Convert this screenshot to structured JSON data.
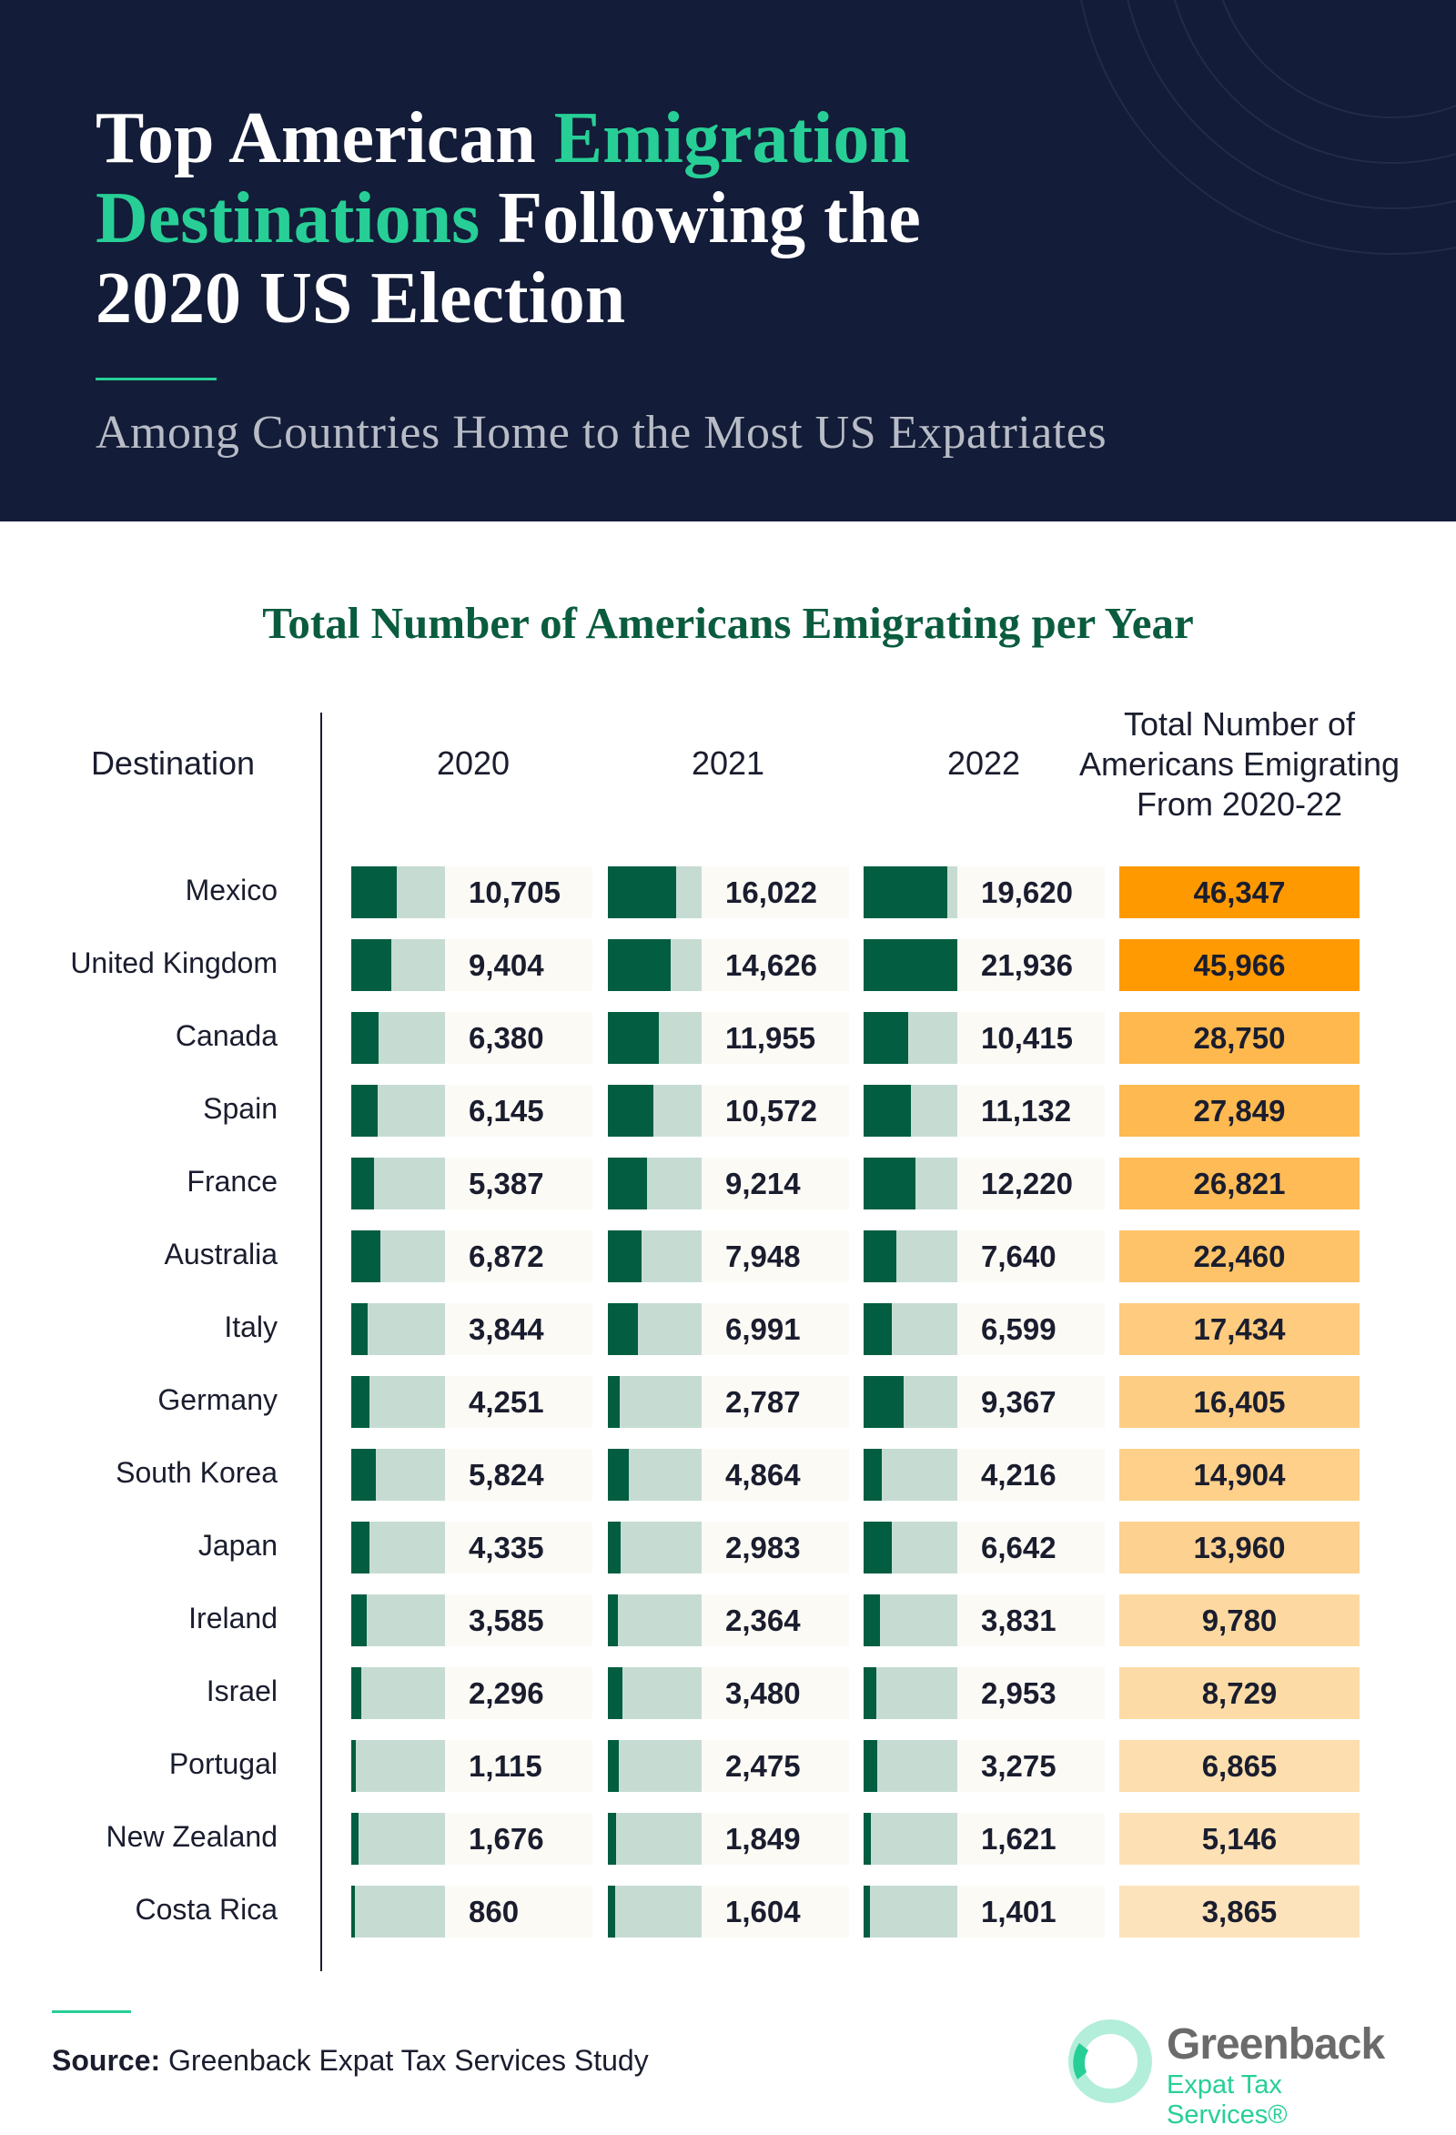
{
  "header": {
    "title_parts": [
      "Top American ",
      "Emigration",
      "Destinations",
      " Following the",
      "2020 US Election"
    ],
    "subtitle": "Among Countries Home to the Most US Expatriates"
  },
  "colors": {
    "header_bg": "#131c38",
    "accent": "#27cf96",
    "bar_dark": "#025d41",
    "bar_light": "#c6dcd3",
    "total_max": "#ff9900",
    "total_min": "#fde3bb"
  },
  "chart_data": {
    "type": "table",
    "title": "Total Number of Americans Emigrating per Year",
    "columns": [
      "Destination",
      "2020",
      "2021",
      "2022",
      "Total Number of Americans Emigrating From 2020-22"
    ],
    "rows": [
      {
        "country": "Mexico",
        "v2020": "10,705",
        "v2021": "16,022",
        "v2022": "19,620",
        "total": "46,347"
      },
      {
        "country": "United Kingdom",
        "v2020": "9,404",
        "v2021": "14,626",
        "v2022": "21,936",
        "total": "45,966"
      },
      {
        "country": "Canada",
        "v2020": "6,380",
        "v2021": "11,955",
        "v2022": "10,415",
        "total": "28,750"
      },
      {
        "country": "Spain",
        "v2020": "6,145",
        "v2021": "10,572",
        "v2022": "11,132",
        "total": "27,849"
      },
      {
        "country": "France",
        "v2020": "5,387",
        "v2021": "9,214",
        "v2022": "12,220",
        "total": "26,821"
      },
      {
        "country": "Australia",
        "v2020": "6,872",
        "v2021": "7,948",
        "v2022": "7,640",
        "total": "22,460"
      },
      {
        "country": "Italy",
        "v2020": "3,844",
        "v2021": "6,991",
        "v2022": "6,599",
        "total": "17,434"
      },
      {
        "country": "Germany",
        "v2020": "4,251",
        "v2021": "2,787",
        "v2022": "9,367",
        "total": "16,405"
      },
      {
        "country": "South Korea",
        "v2020": "5,824",
        "v2021": "4,864",
        "v2022": "4,216",
        "total": "14,904"
      },
      {
        "country": "Japan",
        "v2020": "4,335",
        "v2021": "2,983",
        "v2022": "6,642",
        "total": "13,960"
      },
      {
        "country": "Ireland",
        "v2020": "3,585",
        "v2021": "2,364",
        "v2022": "3,831",
        "total": "9,780"
      },
      {
        "country": "Israel",
        "v2020": "2,296",
        "v2021": "3,480",
        "v2022": "2,953",
        "total": "8,729"
      },
      {
        "country": "Portugal",
        "v2020": "1,115",
        "v2021": "2,475",
        "v2022": "3,275",
        "total": "6,865"
      },
      {
        "country": "New Zealand",
        "v2020": "1,676",
        "v2021": "1,849",
        "v2022": "1,621",
        "total": "5,146"
      },
      {
        "country": "Costa Rica",
        "v2020": "860",
        "v2021": "1,604",
        "v2022": "1,401",
        "total": "3,865"
      }
    ]
  },
  "footer": {
    "source_label": "Source:",
    "source_text": " Greenback Expat Tax Services Study",
    "logo_name": "Greenback",
    "logo_sub": "Expat Tax Services®"
  }
}
